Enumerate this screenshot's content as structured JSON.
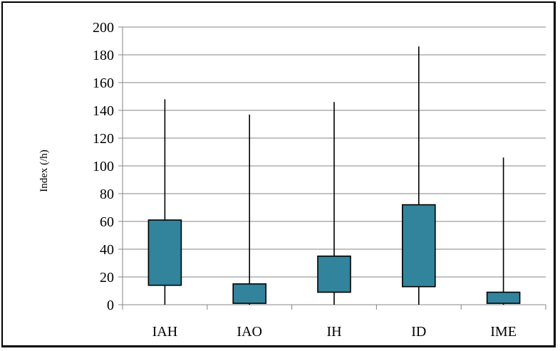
{
  "chart_data": {
    "type": "box",
    "title": "",
    "xlabel": "",
    "ylabel": "Index (/h)",
    "ylim": [
      0,
      200
    ],
    "ytick_step": 20,
    "grid": true,
    "box_color": "#31849B",
    "categories": [
      "IAH",
      "IAO",
      "IH",
      "ID",
      "IME"
    ],
    "boxes": [
      {
        "label": "IAH",
        "min": 0,
        "q1": 14,
        "q3": 61,
        "max": 148
      },
      {
        "label": "IAO",
        "min": 0,
        "q1": 1,
        "q3": 15,
        "max": 137
      },
      {
        "label": "IH",
        "min": 0,
        "q1": 9,
        "q3": 35,
        "max": 146
      },
      {
        "label": "ID",
        "min": 0,
        "q1": 13,
        "q3": 72,
        "max": 186
      },
      {
        "label": "IME",
        "min": 0,
        "q1": 1,
        "q3": 9,
        "max": 106
      }
    ]
  }
}
